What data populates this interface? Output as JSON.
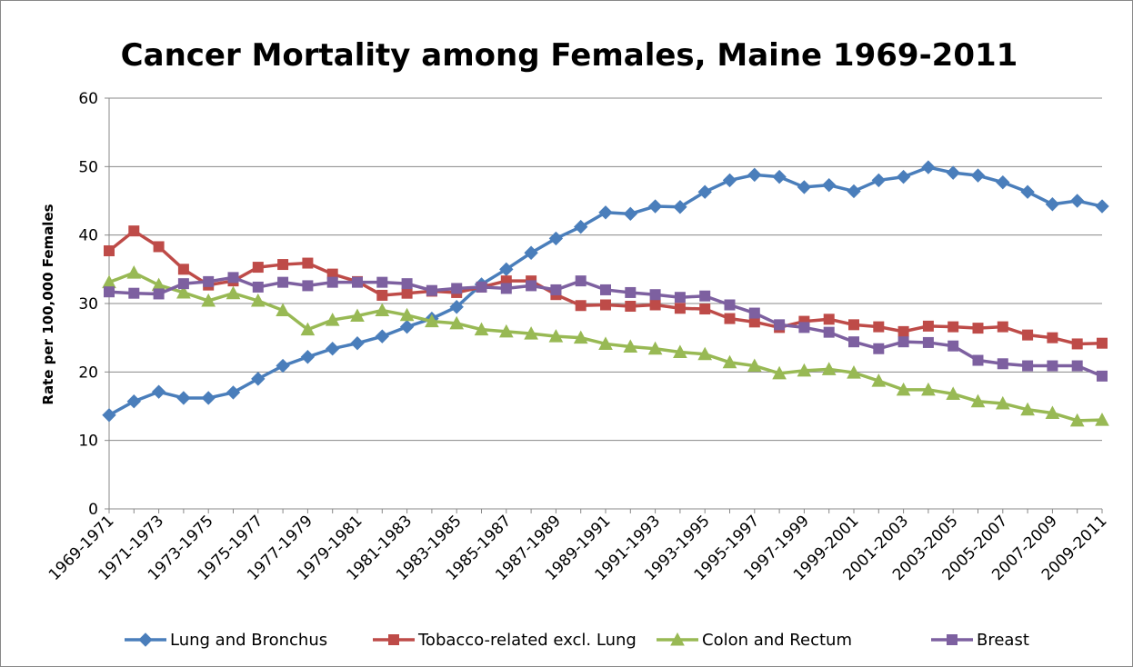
{
  "chart_data": {
    "type": "line",
    "title": "Cancer Mortality among Females, Maine 1969-2011",
    "y_label": "Rate per 100,000 Females",
    "categories": [
      "1969-1971",
      null,
      "1971-1973",
      null,
      "1973-1975",
      null,
      "1975-1977",
      null,
      "1977-1979",
      null,
      "1979-1981",
      null,
      "1981-1983",
      null,
      "1983-1985",
      null,
      "1985-1987",
      null,
      "1987-1989",
      null,
      "1989-1991",
      null,
      "1991-1993",
      null,
      "1993-1995",
      null,
      "1995-1997",
      null,
      "1997-1999",
      null,
      "1999-2001",
      null,
      "2001-2003",
      null,
      "2003-2005",
      null,
      "2005-2007",
      null,
      "2007-2009",
      null,
      "2009-2011"
    ],
    "series": [
      {
        "name": "Lung and Bronchus",
        "color": "#4a7ebb",
        "marker": "diamond",
        "values": [
          13.7,
          15.7,
          17.1,
          16.2,
          16.2,
          17.0,
          19.0,
          20.9,
          22.2,
          23.4,
          24.2,
          25.2,
          26.6,
          27.8,
          29.5,
          32.8,
          35.0,
          37.4,
          39.5,
          41.2,
          43.3,
          43.1,
          44.2,
          44.1,
          46.3,
          48.0,
          48.8,
          48.5,
          47.0,
          47.3,
          46.4,
          48.0,
          48.5,
          49.9,
          49.1,
          48.7,
          47.7,
          46.3,
          44.5,
          45.0,
          44.2
        ]
      },
      {
        "name": "Tobacco-related excl. Lung",
        "color": "#be4b48",
        "marker": "square",
        "values": [
          37.7,
          40.6,
          38.3,
          35.0,
          32.7,
          33.3,
          35.3,
          35.7,
          35.9,
          34.3,
          33.2,
          31.2,
          31.5,
          31.8,
          31.6,
          32.4,
          33.3,
          33.3,
          31.3,
          29.7,
          29.8,
          29.6,
          29.8,
          29.3,
          29.2,
          27.8,
          27.3,
          26.5,
          27.4,
          27.7,
          26.9,
          26.6,
          25.9,
          26.7,
          26.6,
          26.4,
          26.6,
          25.4,
          25.0,
          24.1,
          24.2
        ]
      },
      {
        "name": "Colon and Rectum",
        "color": "#98b954",
        "marker": "triangle",
        "values": [
          33.1,
          34.5,
          32.7,
          31.6,
          30.4,
          31.5,
          30.4,
          29.0,
          26.2,
          27.6,
          28.2,
          29.0,
          28.3,
          27.4,
          27.1,
          26.2,
          25.9,
          25.6,
          25.2,
          25.0,
          24.1,
          23.7,
          23.4,
          22.9,
          22.6,
          21.4,
          20.9,
          19.8,
          20.2,
          20.4,
          19.9,
          18.7,
          17.4,
          17.4,
          16.8,
          15.7,
          15.4,
          14.5,
          14.0,
          12.9,
          13.0
        ]
      },
      {
        "name": "Breast",
        "color": "#7d60a0",
        "marker": "square",
        "values": [
          31.7,
          31.5,
          31.4,
          32.9,
          33.2,
          33.8,
          32.4,
          33.1,
          32.6,
          33.1,
          33.1,
          33.1,
          32.9,
          31.9,
          32.2,
          32.4,
          32.2,
          32.6,
          32.0,
          33.3,
          32.0,
          31.6,
          31.3,
          30.9,
          31.1,
          29.8,
          28.6,
          26.9,
          26.5,
          25.8,
          24.4,
          23.4,
          24.4,
          24.3,
          23.8,
          21.7,
          21.2,
          20.9,
          20.9,
          20.9,
          19.4
        ]
      }
    ],
    "ylim": [
      0,
      60
    ],
    "yticks": [
      0,
      10,
      20,
      30,
      40,
      50,
      60
    ],
    "grid": true,
    "legend": "bottom"
  }
}
